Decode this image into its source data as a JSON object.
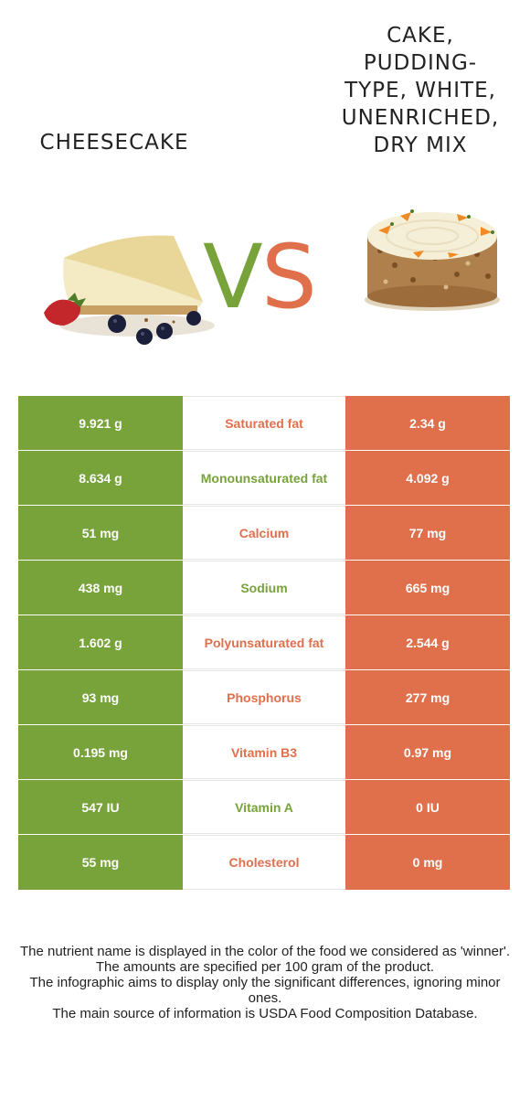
{
  "foods": {
    "left": {
      "name": "Cheesecake",
      "color": "#78a23a",
      "image": "cheesecake-icon"
    },
    "right": {
      "name_lines": [
        "Cake,",
        "pudding-",
        "type, white,",
        "unenriched,",
        "dry mix"
      ],
      "color": "#e0704c",
      "image": "cake-icon"
    }
  },
  "vs": {
    "v": "V",
    "s": "S"
  },
  "rows": [
    {
      "left": "9.921 g",
      "nutrient": "Saturated fat",
      "right": "2.34 g",
      "winner": "right"
    },
    {
      "left": "8.634 g",
      "nutrient": "Monounsaturated fat",
      "right": "4.092 g",
      "winner": "left"
    },
    {
      "left": "51 mg",
      "nutrient": "Calcium",
      "right": "77 mg",
      "winner": "right"
    },
    {
      "left": "438 mg",
      "nutrient": "Sodium",
      "right": "665 mg",
      "winner": "left"
    },
    {
      "left": "1.602 g",
      "nutrient": "Polyunsaturated fat",
      "right": "2.544 g",
      "winner": "right"
    },
    {
      "left": "93 mg",
      "nutrient": "Phosphorus",
      "right": "277 mg",
      "winner": "right"
    },
    {
      "left": "0.195 mg",
      "nutrient": "Vitamin B3",
      "right": "0.97 mg",
      "winner": "right"
    },
    {
      "left": "547 IU",
      "nutrient": "Vitamin A",
      "right": "0 IU",
      "winner": "left"
    },
    {
      "left": "55 mg",
      "nutrient": "Cholesterol",
      "right": "0 mg",
      "winner": "right"
    }
  ],
  "footnote": [
    "The nutrient name is displayed in the color of the food we considered as 'winner'.",
    "The amounts are specified per 100 gram of the product.",
    "The infographic aims to display only the significant differences, ignoring minor ones.",
    "The main source of information is USDA Food Composition Database."
  ]
}
